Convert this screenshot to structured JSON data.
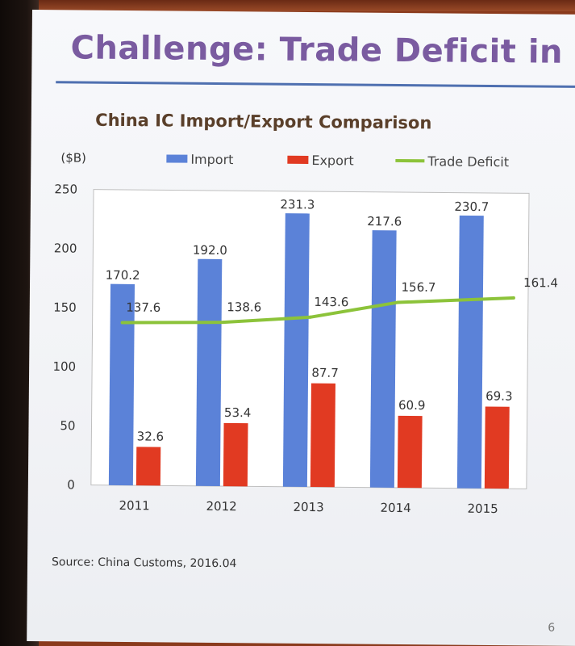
{
  "slide": {
    "title": "Challenge: Trade Deficit in Se",
    "source": "Source: China Customs, 2016.04",
    "page_number": "6"
  },
  "chart_data": {
    "type": "bar",
    "title": "China IC Import/Export Comparison",
    "ylabel": "($B)",
    "xlabel": "",
    "ylim": [
      0,
      250
    ],
    "yticks": [
      0,
      50,
      100,
      150,
      200,
      250
    ],
    "grid": false,
    "legend_position": "top",
    "categories": [
      "2011",
      "2012",
      "2013",
      "2014",
      "2015"
    ],
    "series": [
      {
        "name": "Import",
        "kind": "bar",
        "color": "#5b82d8",
        "values": [
          170.2,
          192.0,
          231.3,
          217.6,
          230.7
        ]
      },
      {
        "name": "Export",
        "kind": "bar",
        "color": "#e13a22",
        "values": [
          32.6,
          53.4,
          87.7,
          60.9,
          69.3
        ]
      },
      {
        "name": "Trade Deficit",
        "kind": "line",
        "color": "#8cc33a",
        "values": [
          137.6,
          138.6,
          143.6,
          156.7,
          161.4
        ]
      }
    ]
  }
}
